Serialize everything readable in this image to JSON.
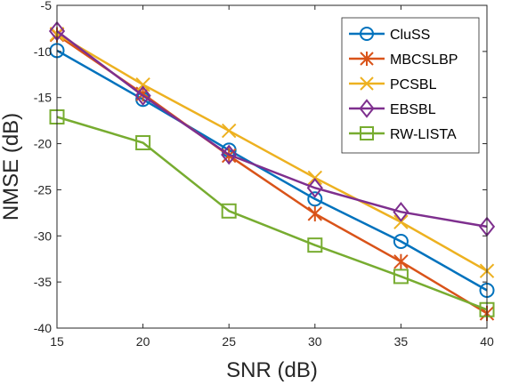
{
  "chart_data": {
    "type": "line",
    "title": "",
    "xlabel": "SNR (dB)",
    "ylabel": "NMSE (dB)",
    "x": [
      15,
      20,
      25,
      30,
      35,
      40
    ],
    "xlim": [
      15,
      40
    ],
    "ylim": [
      -40,
      -5
    ],
    "xticks": [
      "15",
      "20",
      "25",
      "30",
      "35",
      "40"
    ],
    "yticks": [
      "-5",
      "-10",
      "-15",
      "-20",
      "-25",
      "-30",
      "-35",
      "-40"
    ],
    "grid": false,
    "legend_position": "top-right",
    "series": [
      {
        "name": "CluSS",
        "color": "#0072BD",
        "marker": "circle",
        "values": [
          -9.9,
          -15.2,
          -20.7,
          -26.0,
          -30.6,
          -35.9
        ]
      },
      {
        "name": "MBCSLBP",
        "color": "#D95319",
        "marker": "asterisk",
        "values": [
          -8.2,
          -14.6,
          -21.3,
          -27.6,
          -32.8,
          -38.4
        ]
      },
      {
        "name": "PCSBL",
        "color": "#EDB120",
        "marker": "x",
        "values": [
          -8.1,
          -13.6,
          -18.6,
          -23.7,
          -28.5,
          -33.8
        ]
      },
      {
        "name": "EBSBL",
        "color": "#7E2F8E",
        "marker": "diamond",
        "values": [
          -7.8,
          -14.8,
          -21.2,
          -24.8,
          -27.4,
          -29.0
        ]
      },
      {
        "name": "RW-LISTA",
        "color": "#77AC30",
        "marker": "square",
        "values": [
          -17.1,
          -19.9,
          -27.3,
          -31.0,
          -34.4,
          -38.0
        ]
      }
    ]
  }
}
